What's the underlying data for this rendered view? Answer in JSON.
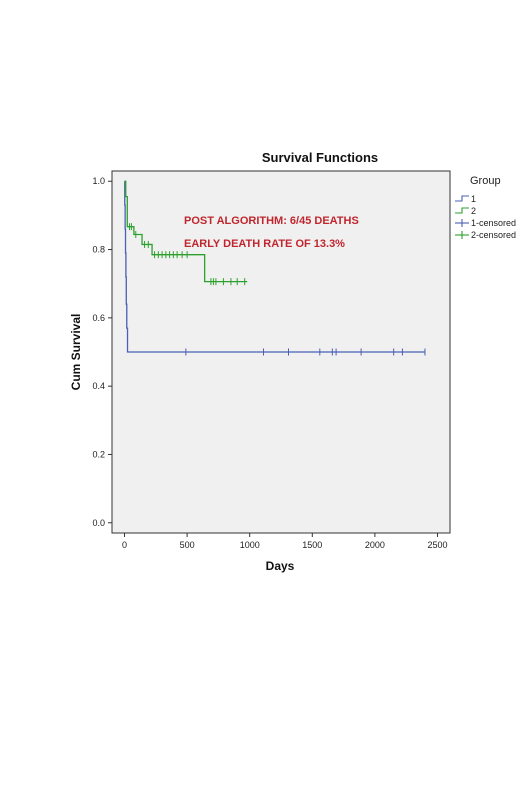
{
  "chart_data": {
    "type": "line",
    "title": "Survival Functions",
    "xlabel": "Days",
    "ylabel": "Cum Survival",
    "xlim": [
      -100,
      2600
    ],
    "ylim": [
      -0.03,
      1.03
    ],
    "x_ticks": [
      0,
      500,
      1000,
      1500,
      2000,
      2500
    ],
    "y_ticks": [
      0.0,
      0.2,
      0.4,
      0.6,
      0.8,
      1.0
    ],
    "x_tick_labels": [
      "0",
      "500",
      "1000",
      "1500",
      "2000",
      "2500"
    ],
    "y_tick_labels": [
      "0.0",
      "0.2",
      "0.4",
      "0.6",
      "0.8",
      "1.0"
    ],
    "grid": false,
    "background": "#f0f0f0",
    "legend": {
      "title": "Group",
      "position": "top-right",
      "entries": [
        "1",
        "2",
        "1-censored",
        "2-censored"
      ]
    },
    "annotations": [
      "POST ALGORITHM: 6/45 DEATHS",
      "EARLY DEATH RATE OF 13.3%"
    ],
    "series": [
      {
        "name": "1",
        "color": "#4a5fb5",
        "steps": [
          [
            0,
            1.0
          ],
          [
            2,
            0.93
          ],
          [
            5,
            0.86
          ],
          [
            8,
            0.79
          ],
          [
            11,
            0.72
          ],
          [
            14,
            0.64
          ],
          [
            18,
            0.57
          ],
          [
            24,
            0.5
          ],
          [
            2400,
            0.5
          ]
        ],
        "censored": [
          [
            490,
            0.5
          ],
          [
            1110,
            0.5
          ],
          [
            1310,
            0.5
          ],
          [
            1560,
            0.5
          ],
          [
            1660,
            0.5
          ],
          [
            1690,
            0.5
          ],
          [
            1890,
            0.5
          ],
          [
            2150,
            0.5
          ],
          [
            2220,
            0.5
          ],
          [
            2400,
            0.5
          ]
        ]
      },
      {
        "name": "2",
        "color": "#2ca02c",
        "steps": [
          [
            0,
            1.0
          ],
          [
            10,
            0.955
          ],
          [
            22,
            0.867
          ],
          [
            75,
            0.844
          ],
          [
            140,
            0.815
          ],
          [
            220,
            0.785
          ],
          [
            640,
            0.706
          ],
          [
            980,
            0.706
          ]
        ],
        "censored": [
          [
            40,
            0.867
          ],
          [
            55,
            0.867
          ],
          [
            90,
            0.844
          ],
          [
            160,
            0.815
          ],
          [
            190,
            0.815
          ],
          [
            240,
            0.785
          ],
          [
            270,
            0.785
          ],
          [
            300,
            0.785
          ],
          [
            330,
            0.785
          ],
          [
            360,
            0.785
          ],
          [
            390,
            0.785
          ],
          [
            420,
            0.785
          ],
          [
            460,
            0.785
          ],
          [
            500,
            0.785
          ],
          [
            690,
            0.706
          ],
          [
            710,
            0.706
          ],
          [
            730,
            0.706
          ],
          [
            790,
            0.706
          ],
          [
            850,
            0.706
          ],
          [
            900,
            0.706
          ],
          [
            960,
            0.706
          ]
        ]
      }
    ]
  }
}
